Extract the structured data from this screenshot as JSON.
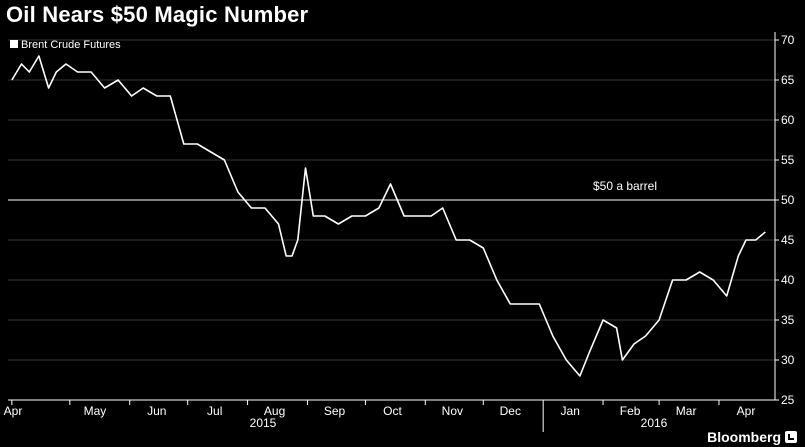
{
  "title": "Oil Nears $50 Magic Number",
  "colors": {
    "background": "#000000",
    "line": "#ffffff",
    "grid": "#3a3a3a",
    "text": "#ffffff"
  },
  "chart_data": {
    "type": "line",
    "title": "Oil Nears $50 Magic Number",
    "xlabel": "",
    "ylabel": "",
    "ylim": [
      25,
      71
    ],
    "yticks": [
      25,
      30,
      35,
      40,
      45,
      50,
      55,
      60,
      65,
      70
    ],
    "grid": "horizontal",
    "legend": {
      "placement": "top-left",
      "entries": [
        "Brent Crude Futures"
      ]
    },
    "x_month_labels": [
      "Apr",
      "May",
      "Jun",
      "Jul",
      "Aug",
      "Sep",
      "Oct",
      "Nov",
      "Dec",
      "Jan",
      "Feb",
      "Mar",
      "Apr"
    ],
    "x_year_labels": [
      "2015",
      "2016"
    ],
    "reference_line": {
      "value": 50,
      "label": "$50 a barrel"
    },
    "series": [
      {
        "name": "Brent Crude Futures",
        "x": [
          "2015-04-01",
          "2015-04-06",
          "2015-04-10",
          "2015-04-15",
          "2015-04-20",
          "2015-04-24",
          "2015-04-29",
          "2015-05-05",
          "2015-05-12",
          "2015-05-19",
          "2015-05-26",
          "2015-06-02",
          "2015-06-08",
          "2015-06-15",
          "2015-06-22",
          "2015-06-29",
          "2015-07-06",
          "2015-07-13",
          "2015-07-20",
          "2015-07-27",
          "2015-08-03",
          "2015-08-10",
          "2015-08-17",
          "2015-08-21",
          "2015-08-24",
          "2015-08-27",
          "2015-08-31",
          "2015-09-04",
          "2015-09-10",
          "2015-09-17",
          "2015-09-24",
          "2015-10-01",
          "2015-10-08",
          "2015-10-14",
          "2015-10-21",
          "2015-10-28",
          "2015-11-04",
          "2015-11-10",
          "2015-11-17",
          "2015-11-24",
          "2015-12-01",
          "2015-12-08",
          "2015-12-15",
          "2015-12-22",
          "2015-12-30",
          "2016-01-06",
          "2016-01-13",
          "2016-01-20",
          "2016-01-25",
          "2016-02-01",
          "2016-02-08",
          "2016-02-11",
          "2016-02-17",
          "2016-02-23",
          "2016-03-01",
          "2016-03-08",
          "2016-03-15",
          "2016-03-22",
          "2016-03-29",
          "2016-04-05",
          "2016-04-11",
          "2016-04-15",
          "2016-04-20",
          "2016-04-25"
        ],
        "y": [
          65,
          67,
          66,
          68,
          64,
          66,
          67,
          66,
          66,
          64,
          65,
          63,
          64,
          63,
          63,
          57,
          57,
          56,
          55,
          51,
          49,
          49,
          47,
          43,
          43,
          45,
          54,
          48,
          48,
          47,
          48,
          48,
          49,
          52,
          48,
          48,
          48,
          49,
          45,
          45,
          44,
          40,
          37,
          37,
          37,
          33,
          30,
          28,
          31,
          35,
          34,
          30,
          32,
          33,
          35,
          40,
          40,
          41,
          40,
          38,
          43,
          45,
          45,
          46
        ]
      }
    ]
  },
  "footer": {
    "brand": "Bloomberg"
  }
}
